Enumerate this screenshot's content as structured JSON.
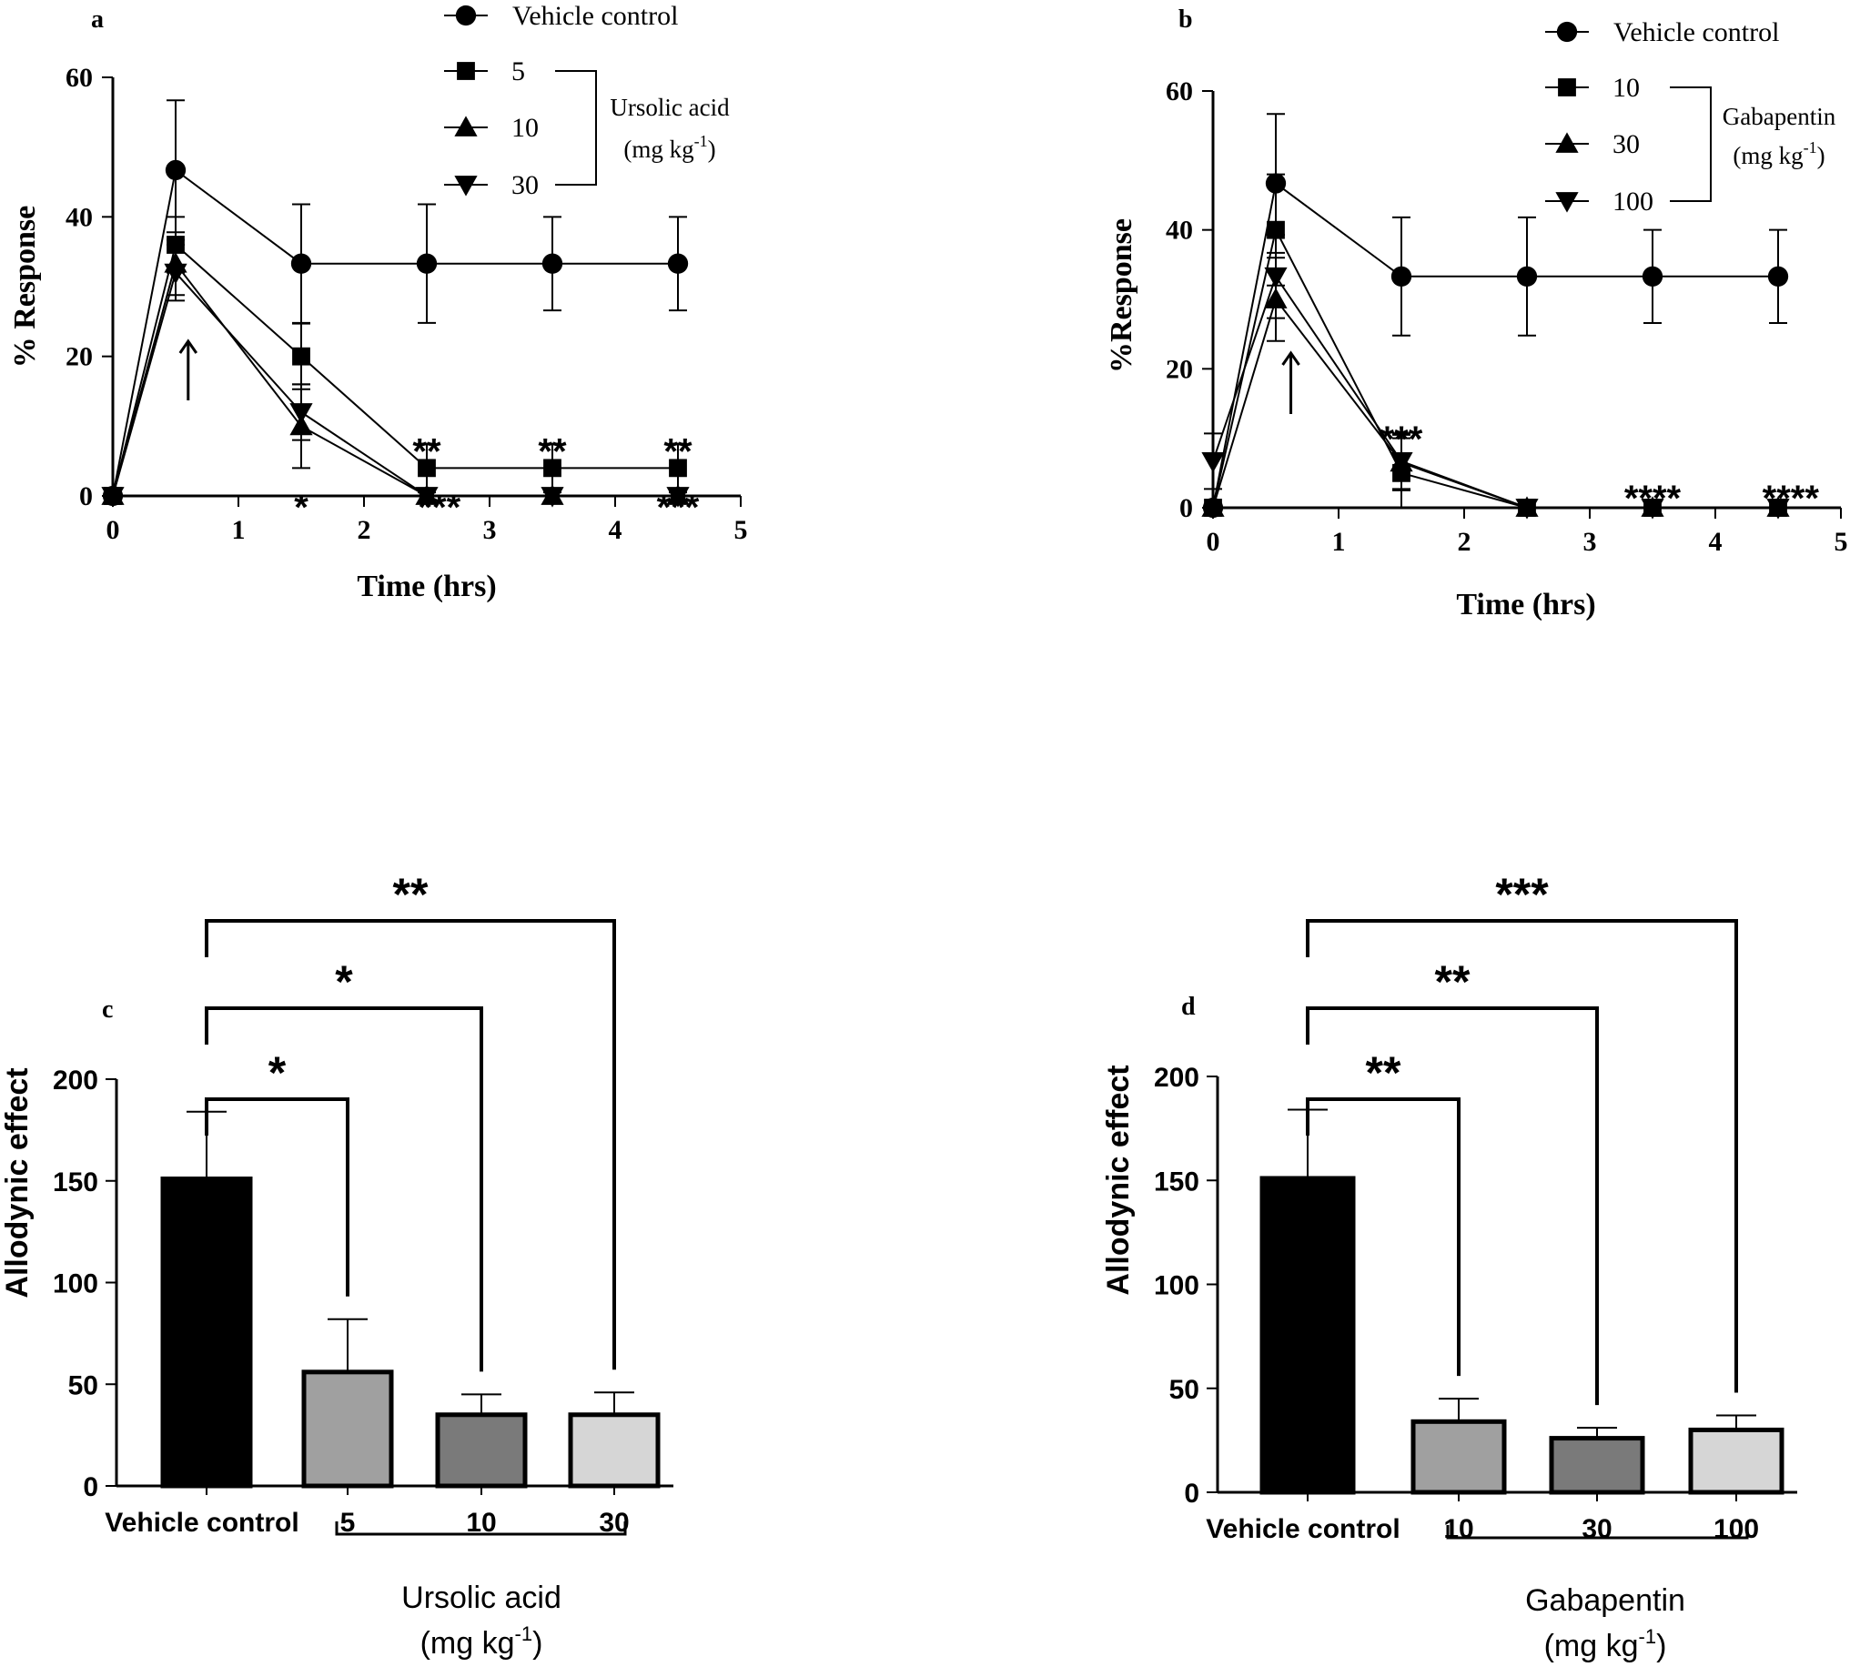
{
  "chart_data": [
    {
      "panel": "a",
      "type": "line",
      "xlabel": "Time (hrs)",
      "ylabel": "% Response",
      "xlim": [
        0,
        5
      ],
      "ylim": [
        0,
        60
      ],
      "xticks": [
        0,
        1,
        2,
        3,
        4,
        5
      ],
      "yticks": [
        0,
        20,
        40,
        60
      ],
      "series": [
        {
          "name": "Vehicle control",
          "marker": "circle",
          "x": [
            0,
            0.5,
            1.5,
            2.5,
            3.5,
            4.5
          ],
          "y": [
            0,
            46.7,
            33.3,
            33.3,
            33.3,
            33.3
          ],
          "err": [
            0,
            10,
            8.5,
            8.5,
            6.7,
            6.7
          ]
        },
        {
          "name": "5",
          "marker": "square",
          "x": [
            0,
            0.5,
            1.5,
            2.5,
            3.5,
            4.5
          ],
          "y": [
            0,
            36,
            20,
            4,
            4,
            4
          ],
          "err": [
            0,
            4,
            4.7,
            3.5,
            3.5,
            3.5
          ]
        },
        {
          "name": "10",
          "marker": "triangle-up",
          "x": [
            0,
            0.5,
            1.5,
            2.5,
            3.5,
            4.5
          ],
          "y": [
            0,
            33.3,
            10,
            0,
            0,
            0
          ],
          "err": [
            0,
            4.5,
            6,
            0,
            0,
            0
          ]
        },
        {
          "name": "30",
          "marker": "triangle-down",
          "x": [
            0,
            0.5,
            1.5,
            2.5,
            3.5,
            4.5
          ],
          "y": [
            0,
            32,
            12,
            0,
            0,
            0
          ],
          "err": [
            0,
            4,
            4,
            0,
            0,
            0
          ]
        }
      ],
      "legend_group_label": [
        "Ursolic acid",
        "(mg kg",
        "-1",
        ")"
      ],
      "arrow_x": 0.6,
      "significance": [
        {
          "x": 1.5,
          "y": -0.5,
          "label": "*"
        },
        {
          "x": 2.5,
          "y": 7.5,
          "label": "**"
        },
        {
          "x": 3.5,
          "y": 7.5,
          "label": "**"
        },
        {
          "x": 4.5,
          "y": 7.5,
          "label": "**"
        },
        {
          "x": 2.6,
          "y": -0.5,
          "label": "***"
        },
        {
          "x": 4.5,
          "y": -0.5,
          "label": "***"
        }
      ]
    },
    {
      "panel": "b",
      "type": "line",
      "xlabel": "Time (hrs)",
      "ylabel": "%Response",
      "xlim": [
        0,
        5
      ],
      "ylim": [
        0,
        60
      ],
      "xticks": [
        0,
        1,
        2,
        3,
        4,
        5
      ],
      "yticks": [
        0,
        20,
        40,
        60
      ],
      "series": [
        {
          "name": "Vehicle control",
          "marker": "circle",
          "x": [
            0,
            0.5,
            1.5,
            2.5,
            3.5,
            4.5
          ],
          "y": [
            0,
            46.7,
            33.3,
            33.3,
            33.3,
            33.3
          ],
          "err": [
            0,
            10,
            8.5,
            8.5,
            6.7,
            6.7
          ]
        },
        {
          "name": "10",
          "marker": "square",
          "x": [
            0,
            0.5,
            1.5,
            2.5,
            3.5,
            4.5
          ],
          "y": [
            0,
            40,
            5,
            0,
            0,
            0
          ],
          "err": [
            0,
            8,
            5,
            0,
            0,
            0
          ]
        },
        {
          "name": "30",
          "marker": "triangle-up",
          "x": [
            0,
            0.5,
            1.5,
            2.5,
            3.5,
            4.5
          ],
          "y": [
            0,
            30,
            6.5,
            0,
            0,
            0
          ],
          "err": [
            0,
            6,
            4,
            0,
            0,
            0
          ]
        },
        {
          "name": "100",
          "marker": "triangle-down",
          "x": [
            0,
            0.5,
            1.5,
            2.5,
            3.5,
            4.5
          ],
          "y": [
            6.7,
            33.3,
            6.7,
            0,
            0,
            0
          ],
          "err": [
            4,
            6,
            4,
            0,
            0,
            0
          ]
        }
      ],
      "legend_group_label": [
        "Gabapentin",
        "(mg kg",
        "-1",
        ")"
      ],
      "arrow_x": 0.62,
      "significance": [
        {
          "x": 1.5,
          "y": 11,
          "label": "***"
        },
        {
          "x": 3.5,
          "y": 2.5,
          "label": "****"
        },
        {
          "x": 4.6,
          "y": 2.5,
          "label": "****"
        }
      ]
    },
    {
      "panel": "c",
      "type": "bar",
      "ylabel": "Allodynic effect",
      "ylim": [
        0,
        200
      ],
      "yticks": [
        0,
        50,
        100,
        150,
        200
      ],
      "categories": [
        "Vehicle control",
        "5",
        "10",
        "30"
      ],
      "values": [
        151,
        56,
        35,
        35
      ],
      "errors": [
        33,
        26,
        10,
        11
      ],
      "colors": [
        "#000000",
        "#a0a0a0",
        "#7a7a7a",
        "#d6d6d6"
      ],
      "group_label": [
        "Ursolic acid",
        "(mg kg",
        "-1",
        ")"
      ],
      "comparisons": [
        {
          "from": 0,
          "to": 1,
          "label": "*"
        },
        {
          "from": 0,
          "to": 2,
          "label": "*"
        },
        {
          "from": 0,
          "to": 3,
          "label": "**"
        }
      ]
    },
    {
      "panel": "d",
      "type": "bar",
      "ylabel": "Allodynic effect",
      "ylim": [
        0,
        200
      ],
      "yticks": [
        0,
        50,
        100,
        150,
        200
      ],
      "categories": [
        "Vehicle control",
        "10",
        "30",
        "100"
      ],
      "values": [
        151,
        34,
        26,
        30
      ],
      "errors": [
        33,
        11,
        5,
        7
      ],
      "colors": [
        "#000000",
        "#a0a0a0",
        "#7a7a7a",
        "#d6d6d6"
      ],
      "group_label": [
        "Gabapentin",
        "(mg kg",
        "-1",
        ")"
      ],
      "comparisons": [
        {
          "from": 0,
          "to": 1,
          "label": "**"
        },
        {
          "from": 0,
          "to": 2,
          "label": "**"
        },
        {
          "from": 0,
          "to": 3,
          "label": "***"
        }
      ]
    }
  ]
}
